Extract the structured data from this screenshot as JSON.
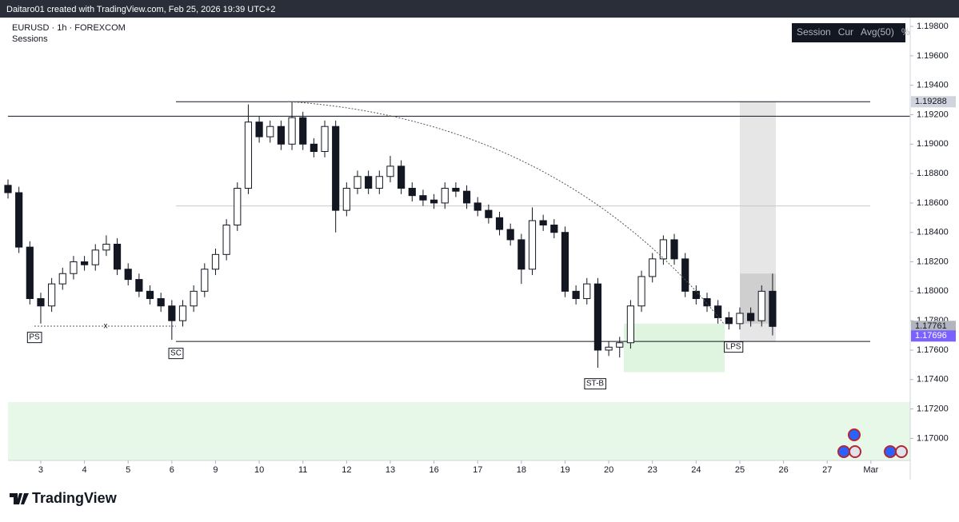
{
  "header": "Daitaro01 created with TradingView.com, Feb 25, 2026 19:39 UTC+2",
  "footer": "TradingView",
  "chart_data": {
    "type": "candlestick",
    "title": "EURUSD · 1h · FOREXCOM",
    "subtitle": "Sessions",
    "indicator": [
      "Session",
      "Cur",
      "Avg(50)",
      "%"
    ],
    "annotations": [
      "PS",
      "SC",
      "ST-B",
      "LPS"
    ],
    "x": [
      -0.75,
      -0.5,
      -0.25,
      0,
      0.25,
      0.5,
      0.75,
      1,
      1.25,
      1.5,
      1.75,
      2,
      2.25,
      2.5,
      2.75,
      3,
      3.25,
      3.5,
      3.75,
      4,
      4.25,
      4.5,
      4.75,
      5,
      5.25,
      5.5,
      5.75,
      6,
      6.25,
      6.5,
      6.75,
      7,
      7.25,
      7.5,
      7.75,
      8,
      8.25,
      8.5,
      8.75,
      9,
      9.25,
      9.5,
      9.75,
      10,
      10.25,
      10.5,
      10.75,
      11,
      11.25,
      11.5,
      11.75,
      12,
      12.25,
      12.5,
      12.75,
      13,
      13.25,
      13.5,
      13.75,
      14,
      14.25,
      14.5,
      14.75,
      15,
      15.25,
      15.5,
      15.75,
      16,
      16.25,
      16.5,
      16.75
    ],
    "series": [
      {
        "up_color": "#ffffff",
        "down_color": "#131722",
        "open": [
          1.1872,
          1.1867,
          1.183,
          1.1795,
          1.179,
          1.1805,
          1.1812,
          1.182,
          1.1818,
          1.1828,
          1.1832,
          1.1815,
          1.1808,
          1.18,
          1.1795,
          1.179,
          1.178,
          1.179,
          1.18,
          1.1815,
          1.1825,
          1.1845,
          1.187,
          1.1915,
          1.1905,
          1.1912,
          1.19,
          1.1918,
          1.19,
          1.1895,
          1.1912,
          1.1855,
          1.187,
          1.1878,
          1.187,
          1.1878,
          1.1885,
          1.187,
          1.1865,
          1.1862,
          1.186,
          1.187,
          1.1868,
          1.186,
          1.1855,
          1.185,
          1.1842,
          1.1835,
          1.1815,
          1.1848,
          1.1845,
          1.184,
          1.18,
          1.1795,
          1.1805,
          1.176,
          1.1762,
          1.1765,
          1.179,
          1.181,
          1.1822,
          1.1835,
          1.1822,
          1.18,
          1.1795,
          1.179,
          1.1782,
          1.1778,
          1.1785,
          1.178,
          1.18
        ],
        "high": [
          1.1876,
          1.1871,
          1.1834,
          1.1799,
          1.1809,
          1.1816,
          1.1824,
          1.1824,
          1.1832,
          1.1838,
          1.1836,
          1.1819,
          1.1812,
          1.1804,
          1.1799,
          1.1794,
          1.1794,
          1.1804,
          1.1819,
          1.1829,
          1.1849,
          1.1874,
          1.1927,
          1.1919,
          1.1916,
          1.1916,
          1.1929,
          1.1922,
          1.1904,
          1.1916,
          1.1916,
          1.1874,
          1.1882,
          1.1882,
          1.1882,
          1.1892,
          1.1889,
          1.1874,
          1.1869,
          1.1866,
          1.1874,
          1.1874,
          1.1872,
          1.1864,
          1.1859,
          1.1854,
          1.1846,
          1.1839,
          1.1857,
          1.1852,
          1.1849,
          1.1844,
          1.1804,
          1.1809,
          1.1809,
          1.1766,
          1.1769,
          1.1794,
          1.1814,
          1.1826,
          1.1838,
          1.1839,
          1.1826,
          1.1804,
          1.1799,
          1.1794,
          1.1786,
          1.1789,
          1.1789,
          1.1804,
          1.1812
        ],
        "low": [
          1.1863,
          1.1826,
          1.1791,
          1.1778,
          1.1786,
          1.1801,
          1.1808,
          1.1814,
          1.1814,
          1.1824,
          1.1811,
          1.1804,
          1.1796,
          1.1791,
          1.1786,
          1.1767,
          1.1776,
          1.1786,
          1.1796,
          1.1811,
          1.1821,
          1.1841,
          1.1866,
          1.1901,
          1.1901,
          1.1896,
          1.1896,
          1.1896,
          1.1891,
          1.1891,
          1.184,
          1.1851,
          1.1866,
          1.1866,
          1.1866,
          1.1874,
          1.1866,
          1.1861,
          1.1858,
          1.1856,
          1.1856,
          1.1864,
          1.1856,
          1.1851,
          1.1846,
          1.1838,
          1.1831,
          1.1805,
          1.1811,
          1.1841,
          1.1836,
          1.1796,
          1.1791,
          1.1791,
          1.1748,
          1.1756,
          1.1755,
          1.1761,
          1.1786,
          1.1806,
          1.1818,
          1.1818,
          1.1796,
          1.1791,
          1.1786,
          1.1778,
          1.1774,
          1.1774,
          1.1776,
          1.1776,
          1.177
        ],
        "close": [
          1.1867,
          1.183,
          1.1795,
          1.179,
          1.1805,
          1.1812,
          1.182,
          1.1818,
          1.1828,
          1.1832,
          1.1815,
          1.1808,
          1.18,
          1.1795,
          1.179,
          1.178,
          1.179,
          1.18,
          1.1815,
          1.1825,
          1.1845,
          1.187,
          1.1915,
          1.1905,
          1.1912,
          1.19,
          1.1918,
          1.19,
          1.1895,
          1.1912,
          1.1855,
          1.187,
          1.1878,
          1.187,
          1.1878,
          1.1885,
          1.187,
          1.1865,
          1.1862,
          1.186,
          1.187,
          1.1868,
          1.186,
          1.1855,
          1.185,
          1.1842,
          1.1835,
          1.1815,
          1.1848,
          1.1845,
          1.184,
          1.18,
          1.1795,
          1.1805,
          1.176,
          1.1762,
          1.1765,
          1.179,
          1.181,
          1.1822,
          1.1835,
          1.1822,
          1.18,
          1.1795,
          1.179,
          1.1782,
          1.1778,
          1.1785,
          1.178,
          1.18,
          1.17761
        ]
      }
    ],
    "xlim": [
      -0.75,
      19.9
    ],
    "xticks": [
      {
        "value": 0,
        "label": "3"
      },
      {
        "value": 1,
        "label": "4"
      },
      {
        "value": 2,
        "label": "5"
      },
      {
        "value": 3,
        "label": "6"
      },
      {
        "value": 4,
        "label": "9"
      },
      {
        "value": 5,
        "label": "10"
      },
      {
        "value": 6,
        "label": "11"
      },
      {
        "value": 7,
        "label": "12"
      },
      {
        "value": 8,
        "label": "13"
      },
      {
        "value": 9,
        "label": "16"
      },
      {
        "value": 10,
        "label": "17"
      },
      {
        "value": 11,
        "label": "18"
      },
      {
        "value": 12,
        "label": "19"
      },
      {
        "value": 13,
        "label": "20"
      },
      {
        "value": 14,
        "label": "23"
      },
      {
        "value": 15,
        "label": "24"
      },
      {
        "value": 16,
        "label": "25"
      },
      {
        "value": 17,
        "label": "26"
      },
      {
        "value": 18,
        "label": "27"
      },
      {
        "value": 19,
        "label": "Mar"
      }
    ],
    "ylim": [
      1.1685,
      1.1986
    ],
    "yticks": [
      {
        "value": 1.198,
        "label": "1.19800"
      },
      {
        "value": 1.196,
        "label": "1.19600"
      },
      {
        "value": 1.194,
        "label": "1.19400"
      },
      {
        "value": 1.192,
        "label": "1.19200"
      },
      {
        "value": 1.19,
        "label": "1.19000"
      },
      {
        "value": 1.188,
        "label": "1.18800"
      },
      {
        "value": 1.186,
        "label": "1.18600"
      },
      {
        "value": 1.184,
        "label": "1.18400"
      },
      {
        "value": 1.182,
        "label": "1.18200"
      },
      {
        "value": 1.18,
        "label": "1.18000"
      },
      {
        "value": 1.178,
        "label": "1.17800"
      },
      {
        "value": 1.176,
        "label": "1.17600"
      },
      {
        "value": 1.174,
        "label": "1.17400"
      },
      {
        "value": 1.172,
        "label": "1.17200"
      },
      {
        "value": 1.17,
        "label": "1.17000"
      }
    ],
    "levels": [
      1.19288,
      1.1919,
      1.1858,
      1.17659
    ],
    "zones": [
      {
        "from": 1.17246,
        "to": 1.1685
      },
      {
        "from": 1.1778,
        "to": 1.1745
      },
      {
        "from": 1.1929,
        "to": 1.17659
      },
      {
        "from": 1.1812,
        "to": 1.1778
      }
    ],
    "price_tags": [
      {
        "value": 1.19288,
        "color": "#d1d4dc"
      },
      {
        "value": 1.17761,
        "color": "#b2b5be"
      },
      {
        "value": 1.17696,
        "color": "#7b61ff"
      }
    ]
  }
}
